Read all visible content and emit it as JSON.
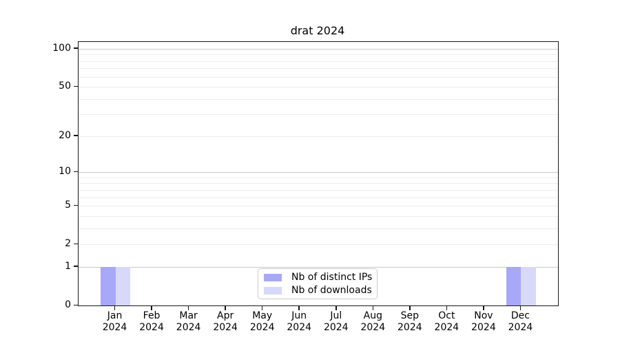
{
  "title": "drat 2024",
  "chart_data": {
    "type": "bar",
    "title": "drat 2024",
    "categories": [
      "Jan 2024",
      "Feb 2024",
      "Mar 2024",
      "Apr 2024",
      "May 2024",
      "Jun 2024",
      "Jul 2024",
      "Aug 2024",
      "Sep 2024",
      "Oct 2024",
      "Nov 2024",
      "Dec 2024"
    ],
    "series": [
      {
        "name": "Nb of distinct IPs",
        "color": "#a8a8f8",
        "values": [
          1,
          0,
          0,
          0,
          0,
          0,
          0,
          0,
          0,
          0,
          0,
          1
        ]
      },
      {
        "name": "Nb of downloads",
        "color": "#d8d8f8",
        "values": [
          1,
          0,
          0,
          0,
          0,
          0,
          0,
          0,
          0,
          0,
          0,
          1
        ]
      }
    ],
    "xlabel": "",
    "ylabel": "",
    "yscale": "log1p",
    "ylim": [
      0,
      113
    ],
    "ytick_values": [
      0,
      1,
      2,
      5,
      10,
      20,
      50,
      100
    ],
    "major_gridline_values": [
      1,
      10,
      100
    ],
    "minor_gridline_values": [
      2,
      3,
      4,
      5,
      6,
      7,
      8,
      9,
      20,
      30,
      40,
      50,
      60,
      70,
      80,
      90
    ],
    "grid": true,
    "legend_position": "lower center",
    "axis_color": "#151515",
    "major_grid_color": "#c9c9c9",
    "minor_grid_color": "#ededed"
  }
}
